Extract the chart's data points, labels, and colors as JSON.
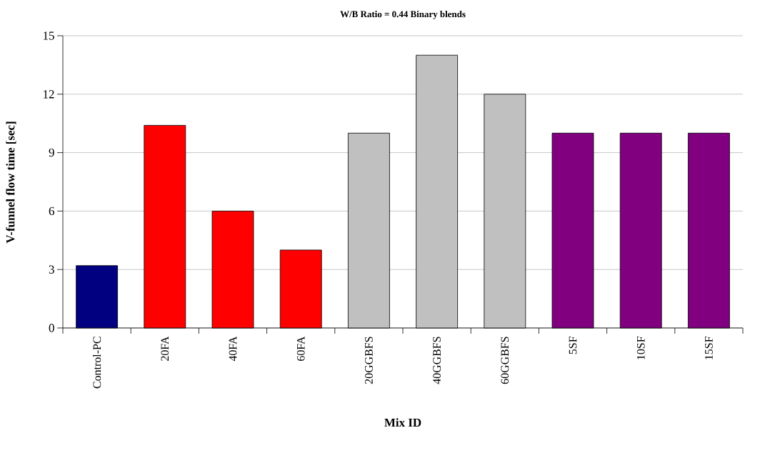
{
  "chart_data": {
    "type": "bar",
    "title": "W/B Ratio = 0.44 Binary blends",
    "xlabel": "Mix ID",
    "ylabel": "V-funnel flow time [sec]",
    "categories": [
      "Control-PC",
      "20FA",
      "40FA",
      "60FA",
      "20GGBFS",
      "40GGBFS",
      "60GGBFS",
      "5SF",
      "10SF",
      "15SF"
    ],
    "values": [
      3.2,
      10.4,
      6,
      4,
      10,
      14,
      12,
      10,
      10,
      10
    ],
    "colors": [
      "#000080",
      "#ff0000",
      "#ff0000",
      "#ff0000",
      "#c0c0c0",
      "#c0c0c0",
      "#c0c0c0",
      "#800080",
      "#800080",
      "#800080"
    ],
    "ylim": [
      0,
      15
    ],
    "yticks": [
      0,
      3,
      6,
      9,
      12,
      15
    ],
    "grid": "y"
  }
}
